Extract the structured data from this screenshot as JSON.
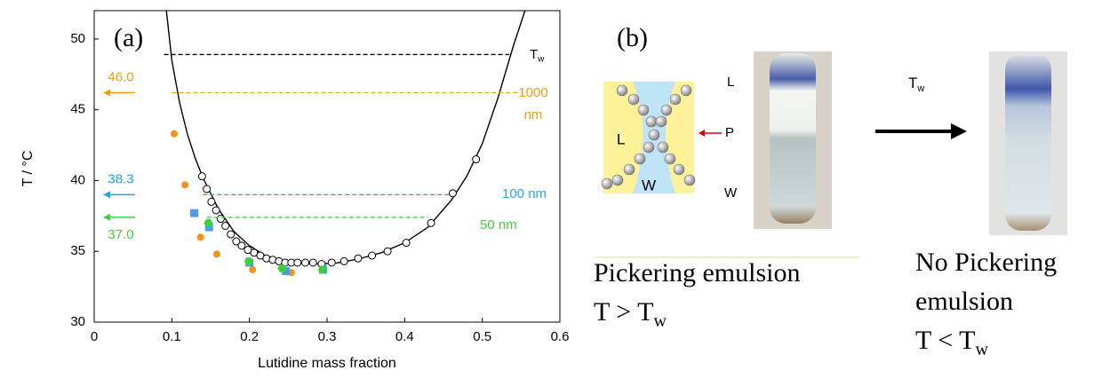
{
  "chart_data": {
    "type": "scatter",
    "panel_label": "(a)",
    "x_label": "Lutidine mass fraction",
    "y_label": "T / °C",
    "xlim": [
      0,
      0.6
    ],
    "ylim": [
      30,
      52
    ],
    "xticks": [
      0,
      0.1,
      0.2,
      0.3,
      0.4,
      0.5,
      0.6
    ],
    "yticks": [
      30,
      35,
      40,
      45,
      50
    ],
    "curve": {
      "color": "#000000",
      "x": [
        0.093,
        0.1,
        0.11,
        0.12,
        0.13,
        0.14,
        0.16,
        0.18,
        0.2,
        0.22,
        0.25,
        0.28,
        0.31,
        0.34,
        0.37,
        0.4,
        0.43,
        0.46,
        0.48,
        0.5,
        0.52,
        0.54,
        0.555
      ],
      "y": [
        52,
        48.5,
        45.5,
        43.3,
        41.6,
        40.2,
        38.0,
        36.4,
        35.4,
        34.7,
        34.25,
        34.1,
        34.15,
        34.45,
        34.9,
        35.6,
        36.7,
        38.6,
        40.3,
        42.6,
        45.8,
        49.5,
        52
      ]
    },
    "series": [
      {
        "marker": "open-circle",
        "color": "#000000",
        "x": [
          0.139,
          0.145,
          0.151,
          0.157,
          0.163,
          0.169,
          0.176,
          0.183,
          0.19,
          0.198,
          0.206,
          0.214,
          0.222,
          0.23,
          0.238,
          0.246,
          0.254,
          0.262,
          0.272,
          0.282,
          0.293,
          0.306,
          0.322,
          0.34,
          0.358,
          0.378,
          0.402,
          0.434,
          0.462,
          0.492
        ],
        "y": [
          40.3,
          39.4,
          38.5,
          37.9,
          37.3,
          36.8,
          36.2,
          35.7,
          35.4,
          35.1,
          34.9,
          34.7,
          34.5,
          34.4,
          34.3,
          34.2,
          34.2,
          34.2,
          34.2,
          34.2,
          34.1,
          34.2,
          34.3,
          34.5,
          34.7,
          35.0,
          35.6,
          37.0,
          39.1,
          41.5
        ]
      },
      {
        "marker": "dot",
        "color": "#f39020",
        "x": [
          0.103,
          0.117,
          0.137,
          0.158,
          0.204,
          0.254
        ],
        "y": [
          43.3,
          39.7,
          36.0,
          34.8,
          33.7,
          33.5
        ]
      },
      {
        "marker": "square",
        "color": "#4a9de8",
        "x": [
          0.129,
          0.148,
          0.2,
          0.247,
          0.295
        ],
        "y": [
          37.7,
          36.7,
          34.2,
          33.6,
          33.7
        ]
      },
      {
        "marker": "hexagon",
        "color": "#3ccf3c",
        "x": [
          0.199,
          0.147,
          0.242,
          0.294
        ],
        "y": [
          34.3,
          37.0,
          33.8,
          33.7
        ]
      }
    ],
    "reference_lines": [
      {
        "y": 48.9,
        "x": [
          0.09,
          0.535
        ],
        "color": "#000000",
        "labels": [
          {
            "text": "T",
            "sub": "w"
          }
        ]
      },
      {
        "y": 46.2,
        "x": [
          0.1,
          0.545
        ],
        "color": "#f39c12",
        "labels": [
          "1000",
          "nm"
        ],
        "arrow_label": "46.0"
      },
      {
        "y": 39.0,
        "x": [
          0.14,
          0.46
        ],
        "color": "#22a8df",
        "labels": [
          "100 nm"
        ],
        "arrow_label": "38.3"
      },
      {
        "y": 37.4,
        "x": [
          0.145,
          0.43
        ],
        "color": "#3ccf3c",
        "labels": [
          "50 nm"
        ],
        "arrow_label": "37.0"
      }
    ]
  },
  "panel_b": {
    "panel_label": "(b)",
    "diagram": {
      "upper": "L",
      "inner": "L",
      "arrow": "P",
      "lower": "W",
      "inner_lower": "W"
    },
    "arrow_label": {
      "text": "T",
      "sub": "w"
    },
    "left_caption": [
      "Pickering emulsion",
      {
        "text": "T > T",
        "sub": "w"
      }
    ],
    "right_caption": [
      "No Pickering",
      "emulsion",
      {
        "text": "T < T",
        "sub": "w"
      }
    ]
  }
}
